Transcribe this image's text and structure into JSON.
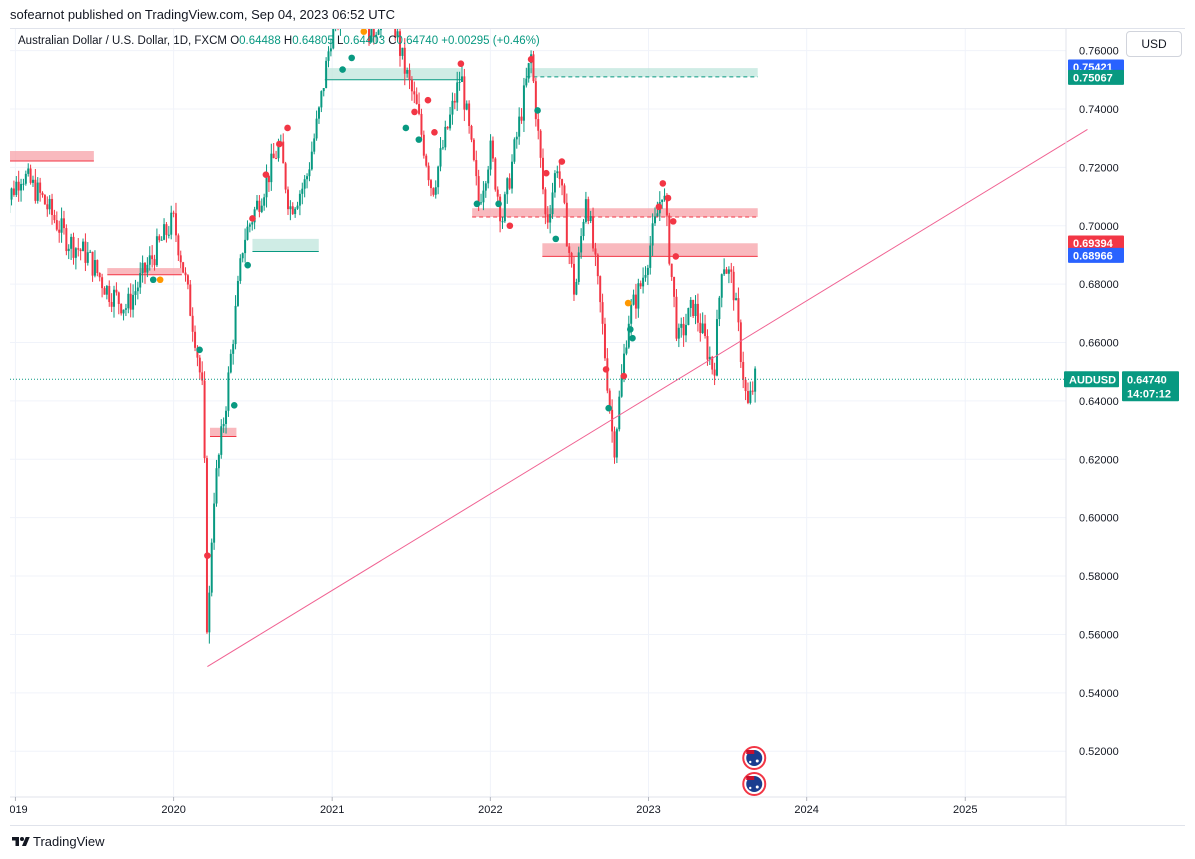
{
  "header": {
    "publisher": "sofearnot published on TradingView.com, Sep 04, 2023 06:52 UTC"
  },
  "legend": {
    "title": "Australian Dollar / U.S. Dollar, 1D, FXCM",
    "open_label": "O",
    "open": "0.64488",
    "high_label": "H",
    "high": "0.64805",
    "low_label": "L",
    "low": "0.64403",
    "close_label": "C",
    "close": "0.64740",
    "change": "+0.00295 (+0.46%)"
  },
  "currency_button": "USD",
  "footer": {
    "brand": "TradingView"
  },
  "colors": {
    "up": "#089981",
    "down": "#f23645",
    "trendline": "#f06292",
    "supply_zone": "#f7a1a8",
    "demand_zone": "#bfe5dc",
    "orange_marker": "#ff9800",
    "blue_tag": "#2962ff"
  },
  "chart_data": {
    "type": "candlestick",
    "symbol": "AUDUSD",
    "x_range": [
      "2018-12-01",
      "2025-12-31"
    ],
    "ylim": [
      0.505,
      0.765
    ],
    "grid": true,
    "x_ticks": [
      "2019",
      "2020",
      "2021",
      "2022",
      "2023",
      "2024",
      "2025"
    ],
    "y_ticks": [
      "0.52000",
      "0.54000",
      "0.56000",
      "0.58000",
      "0.60000",
      "0.62000",
      "0.64000",
      "0.66000",
      "0.68000",
      "0.70000",
      "0.72000",
      "0.74000",
      "0.76000"
    ],
    "price_path": [
      [
        "2018-12-01",
        0.705
      ],
      [
        "2019-01-15",
        0.718
      ],
      [
        "2019-03-01",
        0.71
      ],
      [
        "2019-05-01",
        0.695
      ],
      [
        "2019-06-15",
        0.69
      ],
      [
        "2019-08-01",
        0.678
      ],
      [
        "2019-09-15",
        0.672
      ],
      [
        "2019-11-01",
        0.686
      ],
      [
        "2019-12-31",
        0.702
      ],
      [
        "2020-01-20",
        0.688
      ],
      [
        "2020-02-20",
        0.662
      ],
      [
        "2020-03-10",
        0.64
      ],
      [
        "2020-03-19",
        0.555
      ],
      [
        "2020-04-01",
        0.605
      ],
      [
        "2020-05-01",
        0.64
      ],
      [
        "2020-06-10",
        0.695
      ],
      [
        "2020-08-01",
        0.715
      ],
      [
        "2020-09-01",
        0.728
      ],
      [
        "2020-09-25",
        0.706
      ],
      [
        "2020-11-01",
        0.715
      ],
      [
        "2020-12-01",
        0.738
      ],
      [
        "2021-01-01",
        0.768
      ],
      [
        "2021-02-25",
        0.78
      ],
      [
        "2021-04-01",
        0.765
      ],
      [
        "2021-05-10",
        0.778
      ],
      [
        "2021-06-15",
        0.755
      ],
      [
        "2021-07-15",
        0.74
      ],
      [
        "2021-08-20",
        0.712
      ],
      [
        "2021-10-25",
        0.752
      ],
      [
        "2021-12-05",
        0.708
      ],
      [
        "2022-01-01",
        0.726
      ],
      [
        "2022-01-28",
        0.702
      ],
      [
        "2022-04-05",
        0.758
      ],
      [
        "2022-05-10",
        0.7
      ],
      [
        "2022-06-05",
        0.722
      ],
      [
        "2022-07-15",
        0.676
      ],
      [
        "2022-08-10",
        0.712
      ],
      [
        "2022-09-15",
        0.668
      ],
      [
        "2022-10-13",
        0.623
      ],
      [
        "2022-11-15",
        0.668
      ],
      [
        "2022-12-15",
        0.68
      ],
      [
        "2023-01-20",
        0.703
      ],
      [
        "2023-02-03",
        0.714
      ],
      [
        "2023-03-10",
        0.66
      ],
      [
        "2023-04-15",
        0.673
      ],
      [
        "2023-06-01",
        0.65
      ],
      [
        "2023-06-20",
        0.689
      ],
      [
        "2023-07-15",
        0.68
      ],
      [
        "2023-08-17",
        0.637
      ],
      [
        "2023-09-04",
        0.6474
      ]
    ],
    "trendline": {
      "from": [
        "2020-03-19",
        0.549
      ],
      "to": [
        "2025-10-10",
        0.733
      ]
    },
    "price_lines": [
      {
        "label": "0.75421",
        "value": 0.75421,
        "color": "#2962ff"
      },
      {
        "label": "0.75067",
        "value": 0.75067,
        "color": "#089981"
      },
      {
        "label": "0.69394",
        "value": 0.69394,
        "color": "#f23645"
      },
      {
        "label": "0.68966",
        "value": 0.68966,
        "color": "#2962ff"
      }
    ],
    "last_price": {
      "symbol": "AUDUSD",
      "value": "0.64740",
      "countdown": "14:07:12"
    },
    "zones": [
      {
        "kind": "supply",
        "from": "2018-12-01",
        "to": "2019-07-01",
        "top": 0.7256,
        "bottom": 0.7222
      },
      {
        "kind": "supply",
        "from": "2019-08-01",
        "to": "2020-01-20",
        "top": 0.6855,
        "bottom": 0.6832
      },
      {
        "kind": "supply",
        "from": "2020-03-25",
        "to": "2020-05-25",
        "top": 0.6308,
        "bottom": 0.6278
      },
      {
        "kind": "demand",
        "from": "2020-07-01",
        "to": "2020-12-01",
        "top": 0.6955,
        "bottom": 0.6912
      },
      {
        "kind": "demand",
        "from": "2020-12-15",
        "to": "2021-10-25",
        "top": 0.754,
        "bottom": 0.75
      },
      {
        "kind": "demand",
        "from": "2022-03-25",
        "to": "2023-09-10",
        "top": 0.754,
        "bottom": 0.751,
        "dashed": true
      },
      {
        "kind": "supply",
        "from": "2021-11-20",
        "to": "2023-09-10",
        "top": 0.706,
        "bottom": 0.703,
        "dashed": true
      },
      {
        "kind": "supply",
        "from": "2022-05-01",
        "to": "2023-09-10",
        "top": 0.694,
        "bottom": 0.6895
      }
    ],
    "markers_red": [
      [
        "2020-03-19",
        0.587
      ],
      [
        "2020-08-01",
        0.7175
      ],
      [
        "2020-09-01",
        0.728
      ],
      [
        "2020-09-20",
        0.7335
      ],
      [
        "2020-07-01",
        0.7025
      ],
      [
        "2021-10-25",
        0.7555
      ],
      [
        "2021-07-10",
        0.739
      ],
      [
        "2021-08-10",
        0.743
      ],
      [
        "2021-08-25",
        0.732
      ],
      [
        "2022-04-05",
        0.757
      ],
      [
        "2022-05-10",
        0.718
      ],
      [
        "2022-06-15",
        0.722
      ],
      [
        "2022-02-15",
        0.7
      ],
      [
        "2022-09-25",
        0.6508
      ],
      [
        "2022-11-05",
        0.6485
      ],
      [
        "2023-01-25",
        0.7065
      ],
      [
        "2023-02-03",
        0.7145
      ],
      [
        "2023-02-15",
        0.7095
      ],
      [
        "2023-02-27",
        0.7015
      ],
      [
        "2023-03-05",
        0.6895
      ]
    ],
    "markers_green": [
      [
        "2019-11-15",
        0.6815
      ],
      [
        "2020-03-01",
        0.6575
      ],
      [
        "2020-05-20",
        0.6385
      ],
      [
        "2020-06-20",
        0.6865
      ],
      [
        "2021-01-25",
        0.7535
      ],
      [
        "2021-02-15",
        0.7575
      ],
      [
        "2021-06-20",
        0.7335
      ],
      [
        "2021-07-20",
        0.7295
      ],
      [
        "2021-12-01",
        0.7075
      ],
      [
        "2022-01-20",
        0.7075
      ],
      [
        "2022-04-20",
        0.7395
      ],
      [
        "2022-06-01",
        0.6955
      ],
      [
        "2022-10-01",
        0.6375
      ],
      [
        "2022-11-25",
        0.6615
      ],
      [
        "2022-11-20",
        0.6645
      ]
    ],
    "markers_orange": [
      [
        "2019-12-01",
        0.6815
      ],
      [
        "2021-03-15",
        0.7665
      ],
      [
        "2022-11-15",
        0.6735
      ]
    ],
    "event_flags": [
      "AU",
      "AU"
    ]
  }
}
